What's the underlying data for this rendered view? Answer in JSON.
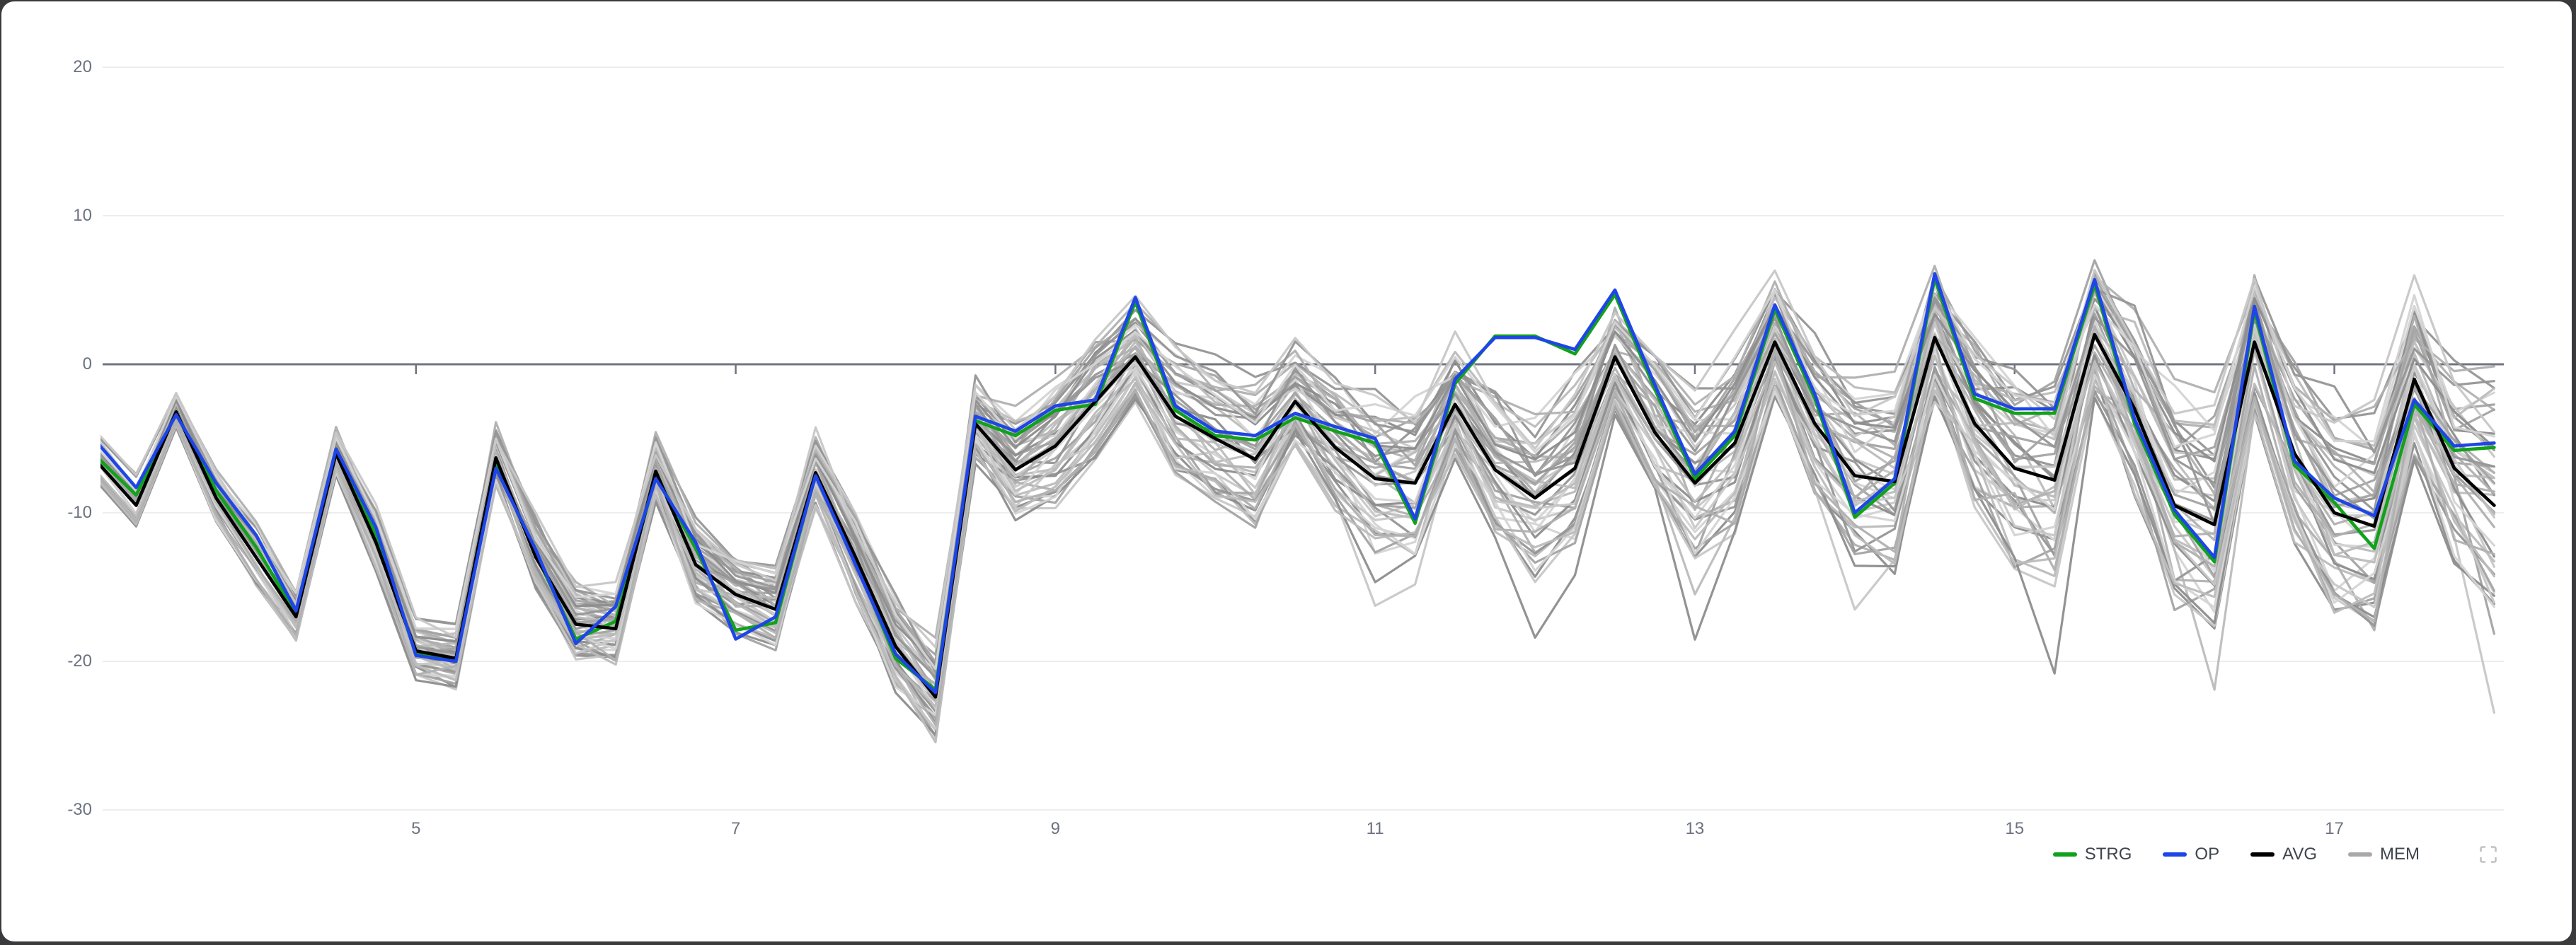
{
  "window": {
    "background": "#3a3a3d",
    "card_background": "#ffffff"
  },
  "axis": {
    "grid_color": "#ededed",
    "zero_line_color": "#6e7580",
    "tick_color": "#6e7580",
    "label_color": "#6b7280",
    "y_ticks": [
      20,
      10,
      0,
      -10,
      -20,
      -30
    ],
    "x_ticks": [
      5,
      7,
      9,
      11,
      13,
      15,
      17
    ]
  },
  "legend": {
    "items": [
      {
        "label": "STRG",
        "color": "#12a11b"
      },
      {
        "label": "OP",
        "color": "#1e46e6"
      },
      {
        "label": "AVG",
        "color": "#000000"
      },
      {
        "label": "MEM",
        "color": "#a8a8a8"
      }
    ],
    "fullscreen_icon_color": "#c2c2c2"
  },
  "chart_data": {
    "type": "line",
    "title": "",
    "xlabel": "",
    "ylabel": "",
    "grid": true,
    "legend_position": "bottom-right",
    "x_range_visible": [
      3.04,
      18.06
    ],
    "ylim": [
      -30,
      20
    ],
    "x": [
      3,
      3.25,
      3.5,
      3.75,
      4,
      4.25,
      4.5,
      4.75,
      5,
      5.25,
      5.5,
      5.75,
      6,
      6.25,
      6.5,
      6.75,
      7,
      7.25,
      7.5,
      7.75,
      8,
      8.25,
      8.5,
      8.75,
      9,
      9.25,
      9.5,
      9.75,
      10,
      10.25,
      10.5,
      10.75,
      11,
      11.25,
      11.5,
      11.75,
      12,
      12.25,
      12.5,
      12.75,
      13,
      13.25,
      13.5,
      13.75,
      14,
      14.25,
      14.5,
      14.75,
      15,
      15.25,
      15.5,
      15.75,
      16,
      16.25,
      16.5,
      16.75,
      17,
      17.25,
      17.5,
      17.75,
      18
    ],
    "series": [
      {
        "name": "STRG",
        "color": "#12a11b",
        "width": 4.6,
        "values": [
          -6.2,
          -8.8,
          -3.3,
          -8.5,
          -12.3,
          -16.8,
          -5.9,
          -11.5,
          -19.5,
          -19.9,
          -6.7,
          -12.8,
          -18.5,
          -17.3,
          -7.5,
          -12.4,
          -17.9,
          -17.4,
          -7.4,
          -13.3,
          -19.8,
          -21.9,
          -3.8,
          -4.8,
          -3.1,
          -2.7,
          4.2,
          -3.1,
          -4.8,
          -5.1,
          -3.6,
          -4.5,
          -5.3,
          -10.7,
          -1.3,
          1.9,
          1.9,
          0.7,
          4.7,
          -1.7,
          -7.7,
          -4.8,
          3.7,
          -2.3,
          -10.3,
          -8.0,
          5.8,
          -2.3,
          -3.3,
          -3.3,
          5.4,
          -4.0,
          -10.1,
          -13.3,
          3.6,
          -6.8,
          -9.3,
          -12.4,
          -2.7,
          -5.8,
          -5.6
        ]
      },
      {
        "name": "AVG",
        "color": "#000000",
        "width": 4.6,
        "values": [
          -6.5,
          -9.5,
          -3.2,
          -9.0,
          -13.0,
          -17.0,
          -6.0,
          -12.0,
          -19.3,
          -19.8,
          -6.3,
          -13.0,
          -17.5,
          -17.8,
          -7.2,
          -13.5,
          -15.5,
          -16.5,
          -7.3,
          -13.0,
          -19.0,
          -22.4,
          -4.0,
          -7.1,
          -5.5,
          -2.5,
          0.5,
          -3.5,
          -5.0,
          -6.4,
          -2.5,
          -5.6,
          -7.7,
          -8.0,
          -2.7,
          -7.1,
          -9.0,
          -7.0,
          0.5,
          -4.6,
          -8.0,
          -5.3,
          1.5,
          -4.0,
          -7.5,
          -7.9,
          1.8,
          -4.0,
          -7.0,
          -7.8,
          2.0,
          -3.0,
          -9.5,
          -10.8,
          1.5,
          -6.0,
          -10.0,
          -10.9,
          -1.0,
          -7.0,
          -9.5
        ]
      },
      {
        "name": "OP",
        "color": "#1e46e6",
        "width": 4.6,
        "values": [
          -5.2,
          -8.3,
          -3.4,
          -8.0,
          -11.5,
          -16.6,
          -5.7,
          -11.0,
          -19.6,
          -20.0,
          -7.0,
          -12.5,
          -18.8,
          -16.3,
          -7.7,
          -12.0,
          -18.5,
          -17.0,
          -7.5,
          -13.5,
          -19.5,
          -22.1,
          -3.5,
          -4.5,
          -2.8,
          -2.4,
          4.5,
          -2.8,
          -4.5,
          -4.8,
          -3.3,
          -4.2,
          -5.0,
          -10.4,
          -1.0,
          1.8,
          1.8,
          1.0,
          5.0,
          -1.4,
          -7.4,
          -4.5,
          4.0,
          -2.0,
          -10.0,
          -7.7,
          6.1,
          -2.0,
          -3.0,
          -3.0,
          5.7,
          -3.7,
          -9.8,
          -13.0,
          3.9,
          -6.5,
          -9.0,
          -10.2,
          -2.4,
          -5.5,
          -5.3
        ]
      }
    ],
    "ensemble": {
      "name": "MEM",
      "member_count": 46,
      "seed": 7,
      "width": 3.2,
      "palette": [
        "#d4d4d4",
        "#c7c7c7",
        "#bcbcbc",
        "#b0b0b0",
        "#a3a3a3",
        "#969696",
        "#8d8d8d"
      ],
      "spread_model": {
        "base_half_width": 1.6,
        "half_width_growth": 6.2,
        "peak_tightening": 0.62,
        "descent_tightening": 0.8,
        "noise_base": 0.5,
        "noise_growth": 2.6,
        "deep_dip_probability": 0.22,
        "deep_dip_after_x": 9.3
      }
    }
  }
}
